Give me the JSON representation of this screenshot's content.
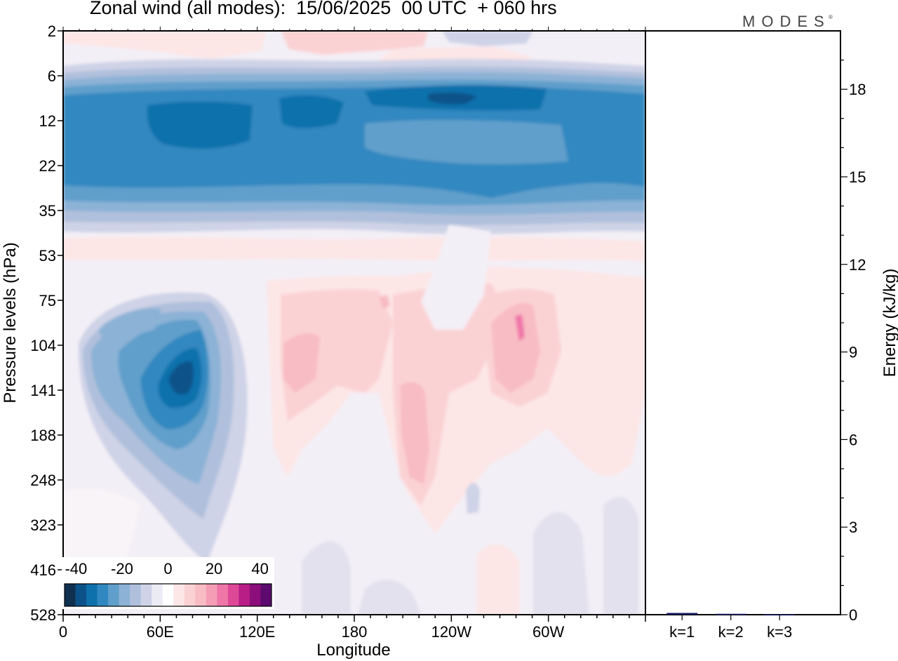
{
  "title": "Zonal wind (all modes):  15/06/2025  00 UTC  + 060 hrs",
  "brand": "MODES",
  "brand_mark": "®",
  "chart_data": [
    {
      "type": "heatmap",
      "title": "Zonal wind (all modes):  15/06/2025  00 UTC  + 060 hrs",
      "xlabel": "Longitude",
      "ylabel": "Pressure levels (hPa)",
      "x_ticks": [
        "0",
        "60E",
        "120E",
        "180",
        "120W",
        "60W"
      ],
      "x_tick_lon": [
        0,
        60,
        120,
        180,
        240,
        300
      ],
      "xlim": [
        0,
        360
      ],
      "y_ticks": [
        "2",
        "6",
        "12",
        "22",
        "35",
        "53",
        "75",
        "104",
        "141",
        "188",
        "248",
        "323",
        "416",
        "528"
      ],
      "y_scale": "model levels (categorical, top to bottom)",
      "colorbar": {
        "ticks": [
          "-40",
          "-20",
          "0",
          "20",
          "40"
        ],
        "range": [
          -45,
          45
        ],
        "step": 5,
        "colors": [
          "#10304f",
          "#0c5289",
          "#0f71ac",
          "#3188c0",
          "#609fcb",
          "#8cb2d6",
          "#b0c0dc",
          "#cfd3e7",
          "#ebebf4",
          "#ffffff",
          "#fde6e6",
          "#fbd2d4",
          "#f8bcc4",
          "#f59db5",
          "#ef77a8",
          "#dd4897",
          "#b91d86",
          "#8b0e7b",
          "#5c0a6e"
        ]
      },
      "features": [
        {
          "name": "stratospheric easterly jet",
          "levels": "6-35 hPa",
          "lon": [
            0,
            360
          ],
          "min_value": -40
        },
        {
          "name": "monsoon easterly jet core",
          "levels": "104-188 hPa",
          "lon": [
            35,
            95
          ],
          "min_value": -40
        },
        {
          "name": "westerlies",
          "levels": "75-323 hPa",
          "lon": [
            130,
            320
          ],
          "max_value": 25
        }
      ]
    },
    {
      "type": "bar",
      "categories": [
        "k=1",
        "k=2",
        "k=3"
      ],
      "values": [
        0.06,
        0.03,
        0.01
      ],
      "ylabel": "Energy (kJ/kg)",
      "ylim": [
        0,
        20
      ],
      "y_ticks": [
        "0",
        "3",
        "6",
        "9",
        "12",
        "15",
        "18"
      ]
    }
  ]
}
